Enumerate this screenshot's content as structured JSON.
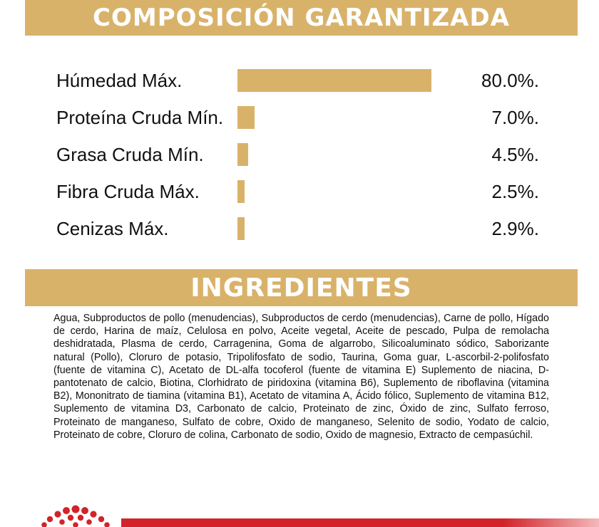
{
  "composition": {
    "title": "COMPOSICIÓN GARANTIZADA",
    "rows": [
      {
        "label": "Húmedad Máx.",
        "value": "80.0%.",
        "percent": 80.0
      },
      {
        "label": "Proteína Cruda Mín.",
        "value": "7.0%.",
        "percent": 7.0
      },
      {
        "label": "Grasa Cruda Mín.",
        "value": "4.5%.",
        "percent": 4.5
      },
      {
        "label": "Fibra Cruda Máx.",
        "value": "2.5%.",
        "percent": 2.5
      },
      {
        "label": "Cenizas Máx.",
        "value": "2.9%.",
        "percent": 2.9
      }
    ],
    "bar_color": "#d9b26a"
  },
  "ingredients": {
    "title": "INGREDIENTES",
    "text": "Agua, Subproductos de pollo (menudencias), Subproductos de cerdo (menudencias), Carne de pollo, Hígado de cerdo, Harina de maíz, Celulosa en polvo, Aceite vegetal, Aceite de pescado, Pulpa de remolacha deshidratada, Plasma de cerdo, Carragenina, Goma de algarrobo, Silicoaluminato sódico, Saborizante natural (Pollo), Cloruro de potasio, Tripolifosfato de sodio, Taurina, Goma guar, L-ascorbil-2-polifosfato (fuente de vitamina C), Acetato de DL-alfa tocoferol (fuente de vitamina E) Suplemento de niacina, D-pantotenato de calcio, Biotina, Clorhidrato de piridoxina (vitamina B6), Suplemento de riboflavina (vitamina B2), Mononitrato de tiamina (vitamina B1), Acetato de vitamina A, Ácido fólico, Suplemento de vitamina B12, Suplemento de vitamina D3, Carbonato de calcio, Proteinato de zinc, Óxido de zinc, Sulfato ferroso, Proteinato de manganeso, Sulfato de cobre, Oxido de manganeso, Selenito de sodio, Yodato de calcio, Proteinato de cobre, Cloruro de colina, Carbonato de sodio, Oxido de magnesio, Extracto de cempasúchil."
  },
  "colors": {
    "banner": "#d9b26a",
    "brand_red": "#d2232a"
  },
  "icons": {
    "brand_logo": "crown-dots-logo-icon"
  }
}
